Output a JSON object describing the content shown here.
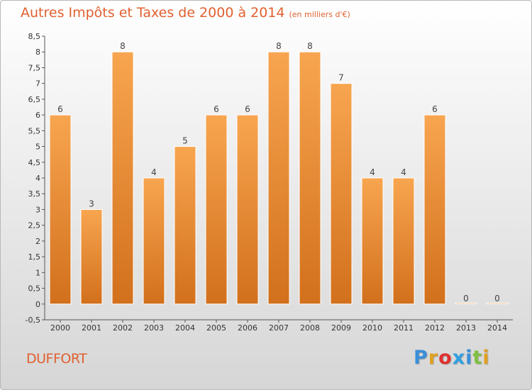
{
  "header": {
    "title": "Autres Impôts et Taxes de 2000 à 2014",
    "subtitle": "(en milliers d'€)"
  },
  "footer": {
    "commune": "DUFFORT",
    "logo_letters": [
      "P",
      "r",
      "o",
      "x",
      "i",
      "t",
      "i"
    ],
    "logo_colors": [
      "#3a8fd8",
      "#e0a020",
      "#e03030",
      "#2ea0e0",
      "#3a8fd8",
      "#80c040",
      "#e0a020"
    ]
  },
  "chart_data": {
    "type": "bar",
    "title": "Autres Impôts et Taxes de 2000 à 2014",
    "subtitle": "(en milliers d'€)",
    "categories": [
      "2000",
      "2001",
      "2002",
      "2003",
      "2004",
      "2005",
      "2006",
      "2007",
      "2008",
      "2009",
      "2010",
      "2011",
      "2012",
      "2013",
      "2014"
    ],
    "values": [
      6,
      3,
      8,
      4,
      5,
      6,
      6,
      8,
      8,
      7,
      4,
      4,
      6,
      0,
      0
    ],
    "ylim": [
      -0.5,
      8.5
    ],
    "yticks": [
      "-0,5",
      "0",
      "0,5",
      "1",
      "1,5",
      "2",
      "2,5",
      "3",
      "3,5",
      "4",
      "4,5",
      "5",
      "5,5",
      "6",
      "6,5",
      "7",
      "7,5",
      "8",
      "8,5"
    ],
    "grid": false,
    "colors": {
      "bar_top": "#f8a550",
      "bar_bottom": "#d2701c",
      "bar_edge": "#ffffff",
      "axis": "#555555"
    }
  }
}
